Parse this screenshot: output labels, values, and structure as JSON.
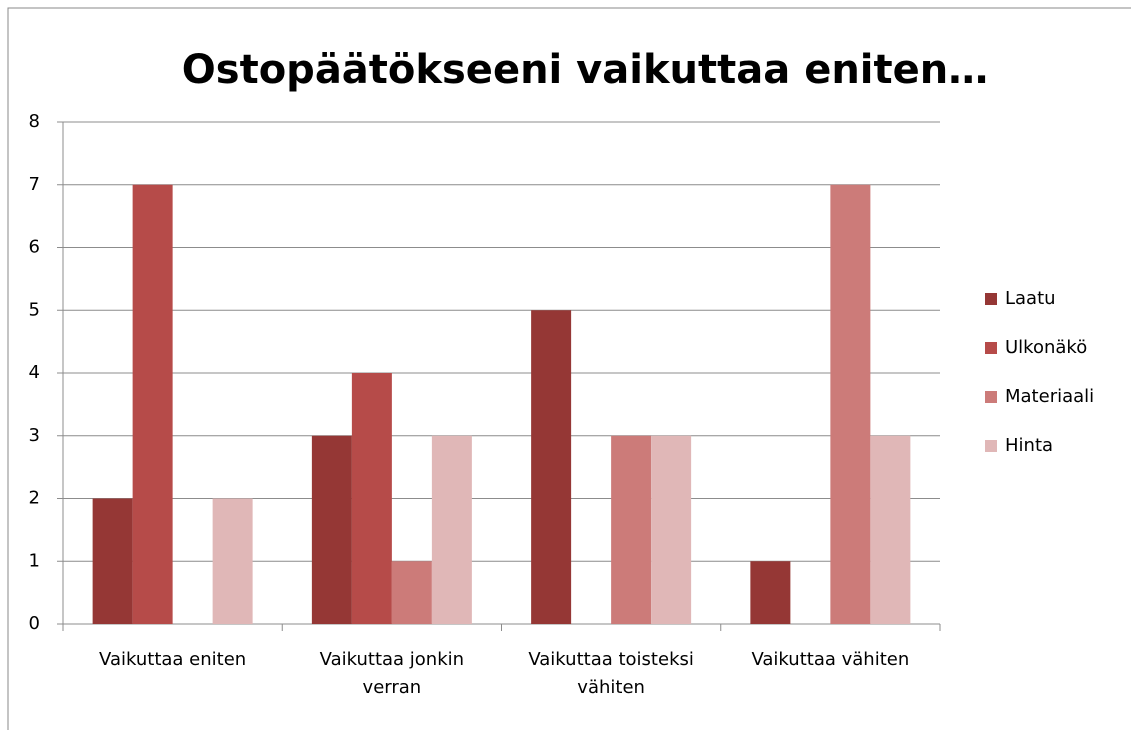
{
  "chart_data": {
    "type": "bar",
    "title": "Ostopäätökseeni vaikuttaa eniten…",
    "categories": [
      "Vaikuttaa eniten",
      "Vaikuttaa jonkin verran",
      "Vaikuttaa toisteksi vähiten",
      "Vaikuttaa vähiten"
    ],
    "series": [
      {
        "name": "Laatu",
        "color": "#953735",
        "values": [
          2,
          3,
          5,
          1
        ]
      },
      {
        "name": "Ulkonäkö",
        "color": "#b64b49",
        "values": [
          7,
          4,
          0,
          0
        ]
      },
      {
        "name": "Materiaali",
        "color": "#cc7b79",
        "values": [
          0,
          1,
          3,
          7
        ]
      },
      {
        "name": "Hinta",
        "color": "#e0b7b7",
        "values": [
          2,
          3,
          3,
          3
        ]
      }
    ],
    "ylim": [
      0,
      8
    ],
    "yticks": [
      0,
      1,
      2,
      3,
      4,
      5,
      6,
      7,
      8
    ],
    "grid": true,
    "legend": "right"
  }
}
